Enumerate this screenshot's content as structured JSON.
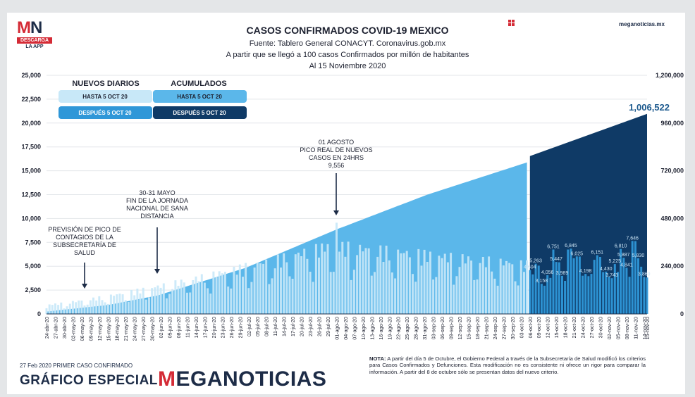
{
  "header": {
    "title": "CASOS CONFIRMADOS COVID-19 MEXICO",
    "source": "Fuente: Tablero General CONACYT. Coronavirus.gob.mx",
    "note": "A partir que se llegó a 100 casos Confirmados por millón de habitantes",
    "date": "Al 15 Noviembre 2020",
    "site": "meganoticias.mx"
  },
  "logo": {
    "mn_m": "M",
    "mn_n": "N",
    "descarga": "DESCARGA",
    "app": "LA APP"
  },
  "legend": {
    "daily_title": "NUEVOS DIARIOS",
    "cumulative_title": "ACUMULADOS",
    "daily_before": "HASTA 5 OCT 20",
    "daily_after": "DESPUÉS 5 OCT 20",
    "cumulative_before": "HASTA 5 OCT 20",
    "cumulative_after": "DESPUÉS 5 OCT 20"
  },
  "annotations": {
    "final_total": "1,006,522",
    "pico_prevision": [
      "PREVISIÓN DE PICO DE",
      "CONTAGIOS DE LA",
      "SUBSECRETARÍA DE",
      "SALUD"
    ],
    "jornada": [
      "30-31 MAYO",
      "FIN DE LA JORNADA",
      "NACIONAL DE SANA",
      "DISTANCIA"
    ],
    "agosto": [
      "01 AGOSTO",
      "PICO REAL DE NUEVOS",
      "CASOS EN 24HRS",
      "9,556"
    ]
  },
  "footer": {
    "first_case": "27 Feb 2020 PRIMER CASO CONFIRMADO",
    "special": "GRÁFICO ESPECIAL",
    "brand_m": "M",
    "brand_rest": "EGANOTICIAS",
    "note_bold": "NOTA:",
    "note_text": " A partir del día 5 de Octubre, el Gobierno Federal a través de la Subsecretaría de Salud modificó los criterios para Casos Confirmados y Defunciones. Esta modificación no es consistente ni ofrece un rigor para comparar la información. A partir del 8 de octubre sólo se presentan datos del nuevo criterio."
  },
  "colors": {
    "daily_before": "#c8e8f8",
    "daily_after": "#2f97d8",
    "cumulative_before": "#5bb7ea",
    "cumulative_after": "#0f3a66",
    "navy": "#1d2c47",
    "brand_red": "#d42b36"
  },
  "chart_data": {
    "type": "bar",
    "title": "CASOS CONFIRMADOS COVID-19 MEXICO",
    "x_start": "2020-04-24",
    "x_end": "2020-11-15",
    "y_left_ticks": [
      "0",
      "2,500",
      "5,000",
      "7,500",
      "10,000",
      "12,500",
      "15,000",
      "17,500",
      "20,000",
      "22,500",
      "25,000"
    ],
    "y_left_range": [
      0,
      25000
    ],
    "y_right_ticks": [
      "0",
      "240,000",
      "480,000",
      "720,000",
      "960,000",
      "1,200,000"
    ],
    "y_right_range": [
      0,
      1200000
    ],
    "criteria_change_date": "2020-10-05",
    "x_tick_labels": [
      "24-abr-20",
      "27-abr-20",
      "30-abr-20",
      "03-may-20",
      "06-may-20",
      "09-may-20",
      "12-may-20",
      "15-may-20",
      "18-may-20",
      "21-may-20",
      "24-may-20",
      "27-may-20",
      "30-may-20",
      "02-jun-20",
      "05-jun-20",
      "08-jun-20",
      "11-jun-20",
      "14-jun-20",
      "17-jun-20",
      "20-jun-20",
      "23-jun-20",
      "26-jun-20",
      "29-jun-20",
      "02-jul-20",
      "05-jul-20",
      "08-jul-20",
      "11-jul-20",
      "14-jul-20",
      "17-jul-20",
      "20-jul-20",
      "23-jul-20",
      "26-jul-20",
      "29-jul-20",
      "01-ago-20",
      "04-ago-20",
      "07-ago-20",
      "10-ago-20",
      "13-ago-20",
      "16-ago-20",
      "19-ago-20",
      "22-ago-20",
      "25-ago-20",
      "28-ago-20",
      "31-ago-20",
      "03-sep-20",
      "06-sep-20",
      "09-sep-20",
      "12-sep-20",
      "15-sep-20",
      "18-sep-20",
      "21-sep-20",
      "24-sep-20",
      "27-sep-20",
      "30-sep-20",
      "03-oct-20",
      "06-oct-20",
      "09-oct-20",
      "12-oct-20",
      "15-oct-20",
      "18-oct-20",
      "21-oct-20",
      "24-oct-20",
      "27-oct-20",
      "30-oct-20",
      "02-nov-20",
      "05-nov-20",
      "08-nov-20",
      "11-nov-20",
      "14-nov-20",
      "15-nov-20"
    ],
    "series": [
      {
        "name": "NUEVOS DIARIOS",
        "axis": "left",
        "daily_before_peak": {
          "date": "2020-08-01",
          "value": 9556
        },
        "daily_after_labels": [
          {
            "x": "2020-10-06",
            "value": 4604
          },
          {
            "x": "2020-10-08",
            "value": 5263
          },
          {
            "x": "2020-10-10",
            "value": 3158
          },
          {
            "x": "2020-10-12",
            "value": 4056
          },
          {
            "x": "2020-10-14",
            "value": 6751
          },
          {
            "x": "2020-10-15",
            "value": 5447
          },
          {
            "x": "2020-10-17",
            "value": 3989
          },
          {
            "x": "2020-10-20",
            "value": 6845
          },
          {
            "x": "2020-10-22",
            "value": 6025
          },
          {
            "x": "2020-10-25",
            "value": 4198
          },
          {
            "x": "2020-10-29",
            "value": 6151
          },
          {
            "x": "2020-11-01",
            "value": 4430
          },
          {
            "x": "2020-11-03",
            "value": 3743
          },
          {
            "x": "2020-11-04",
            "value": 5225
          },
          {
            "x": "2020-11-06",
            "value": 6810
          },
          {
            "x": "2020-11-07",
            "value": 5887
          },
          {
            "x": "2020-11-08",
            "value": 4841
          },
          {
            "x": "2020-11-10",
            "value": 7646
          },
          {
            "x": "2020-11-12",
            "value": 5830
          },
          {
            "x": "2020-11-14",
            "value": 3869
          }
        ]
      },
      {
        "name": "ACUMULADOS",
        "axis": "right",
        "points": [
          {
            "x": "2020-04-24",
            "y": 12000
          },
          {
            "x": "2020-05-15",
            "y": 45000
          },
          {
            "x": "2020-06-01",
            "y": 93000
          },
          {
            "x": "2020-07-01",
            "y": 232000
          },
          {
            "x": "2020-08-01",
            "y": 425000
          },
          {
            "x": "2020-09-01",
            "y": 600000
          },
          {
            "x": "2020-10-05",
            "y": 762000
          },
          {
            "x": "2020-10-06",
            "y": 794000
          },
          {
            "x": "2020-11-15",
            "y": 1006522
          }
        ]
      }
    ]
  }
}
